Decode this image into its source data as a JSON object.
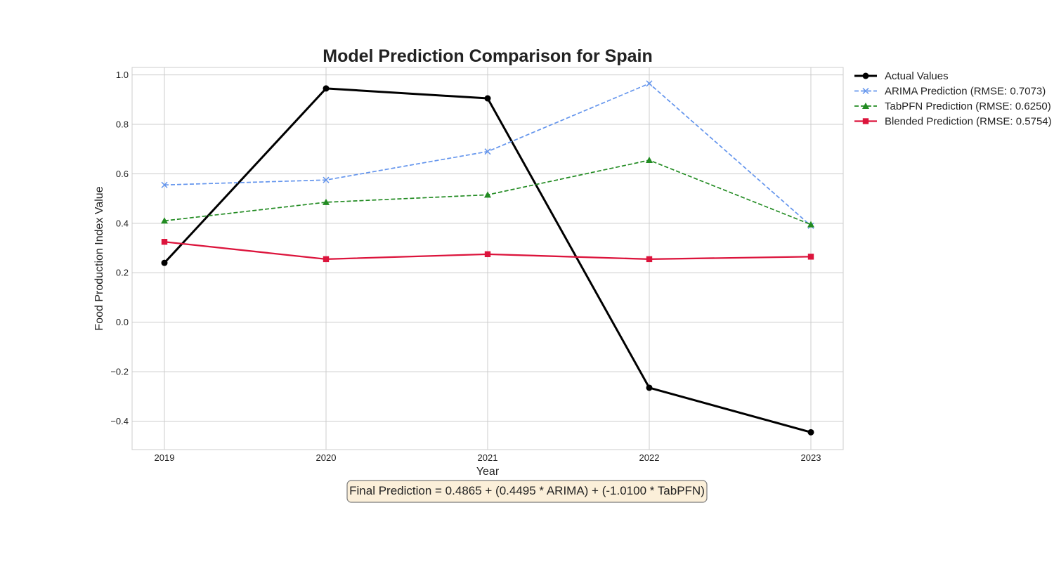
{
  "chart_data": {
    "type": "line",
    "title": "Model Prediction Comparison for Spain",
    "xlabel": "Year",
    "ylabel": "Food Production Index Value",
    "categories": [
      "2019",
      "2020",
      "2021",
      "2022",
      "2023"
    ],
    "x": [
      2019,
      2020,
      2021,
      2022,
      2023
    ],
    "xlim": [
      2018.8,
      2023.2
    ],
    "ylim": [
      -0.515,
      1.03
    ],
    "yticks": [
      -0.4,
      -0.2,
      0.0,
      0.2,
      0.4,
      0.6,
      0.8,
      1.0
    ],
    "ytick_labels": [
      "−0.4",
      "−0.2",
      "0.0",
      "0.2",
      "0.4",
      "0.6",
      "0.8",
      "1.0"
    ],
    "grid": true,
    "legend_position": "outside-right-top",
    "series": [
      {
        "name": "Actual Values",
        "values": [
          0.24,
          0.945,
          0.905,
          -0.265,
          -0.445
        ],
        "color": "#000000",
        "marker": "circle",
        "dash": "solid"
      },
      {
        "name": "ARIMA Prediction (RMSE: 0.7073)",
        "values": [
          0.555,
          0.575,
          0.69,
          0.965,
          0.39
        ],
        "color": "#6495ed",
        "marker": "x",
        "dash": "dashed"
      },
      {
        "name": "TabPFN Prediction (RMSE: 0.6250)",
        "values": [
          0.41,
          0.485,
          0.515,
          0.655,
          0.395
        ],
        "color": "#228b22",
        "marker": "triangle",
        "dash": "dashed"
      },
      {
        "name": "Blended Prediction (RMSE: 0.5754)",
        "values": [
          0.325,
          0.255,
          0.275,
          0.255,
          0.265
        ],
        "color": "#dc143c",
        "marker": "square",
        "dash": "solid"
      }
    ],
    "annotation": "Final Prediction = 0.4865 + (0.4495 * ARIMA) + (-1.0100 * TabPFN)"
  }
}
